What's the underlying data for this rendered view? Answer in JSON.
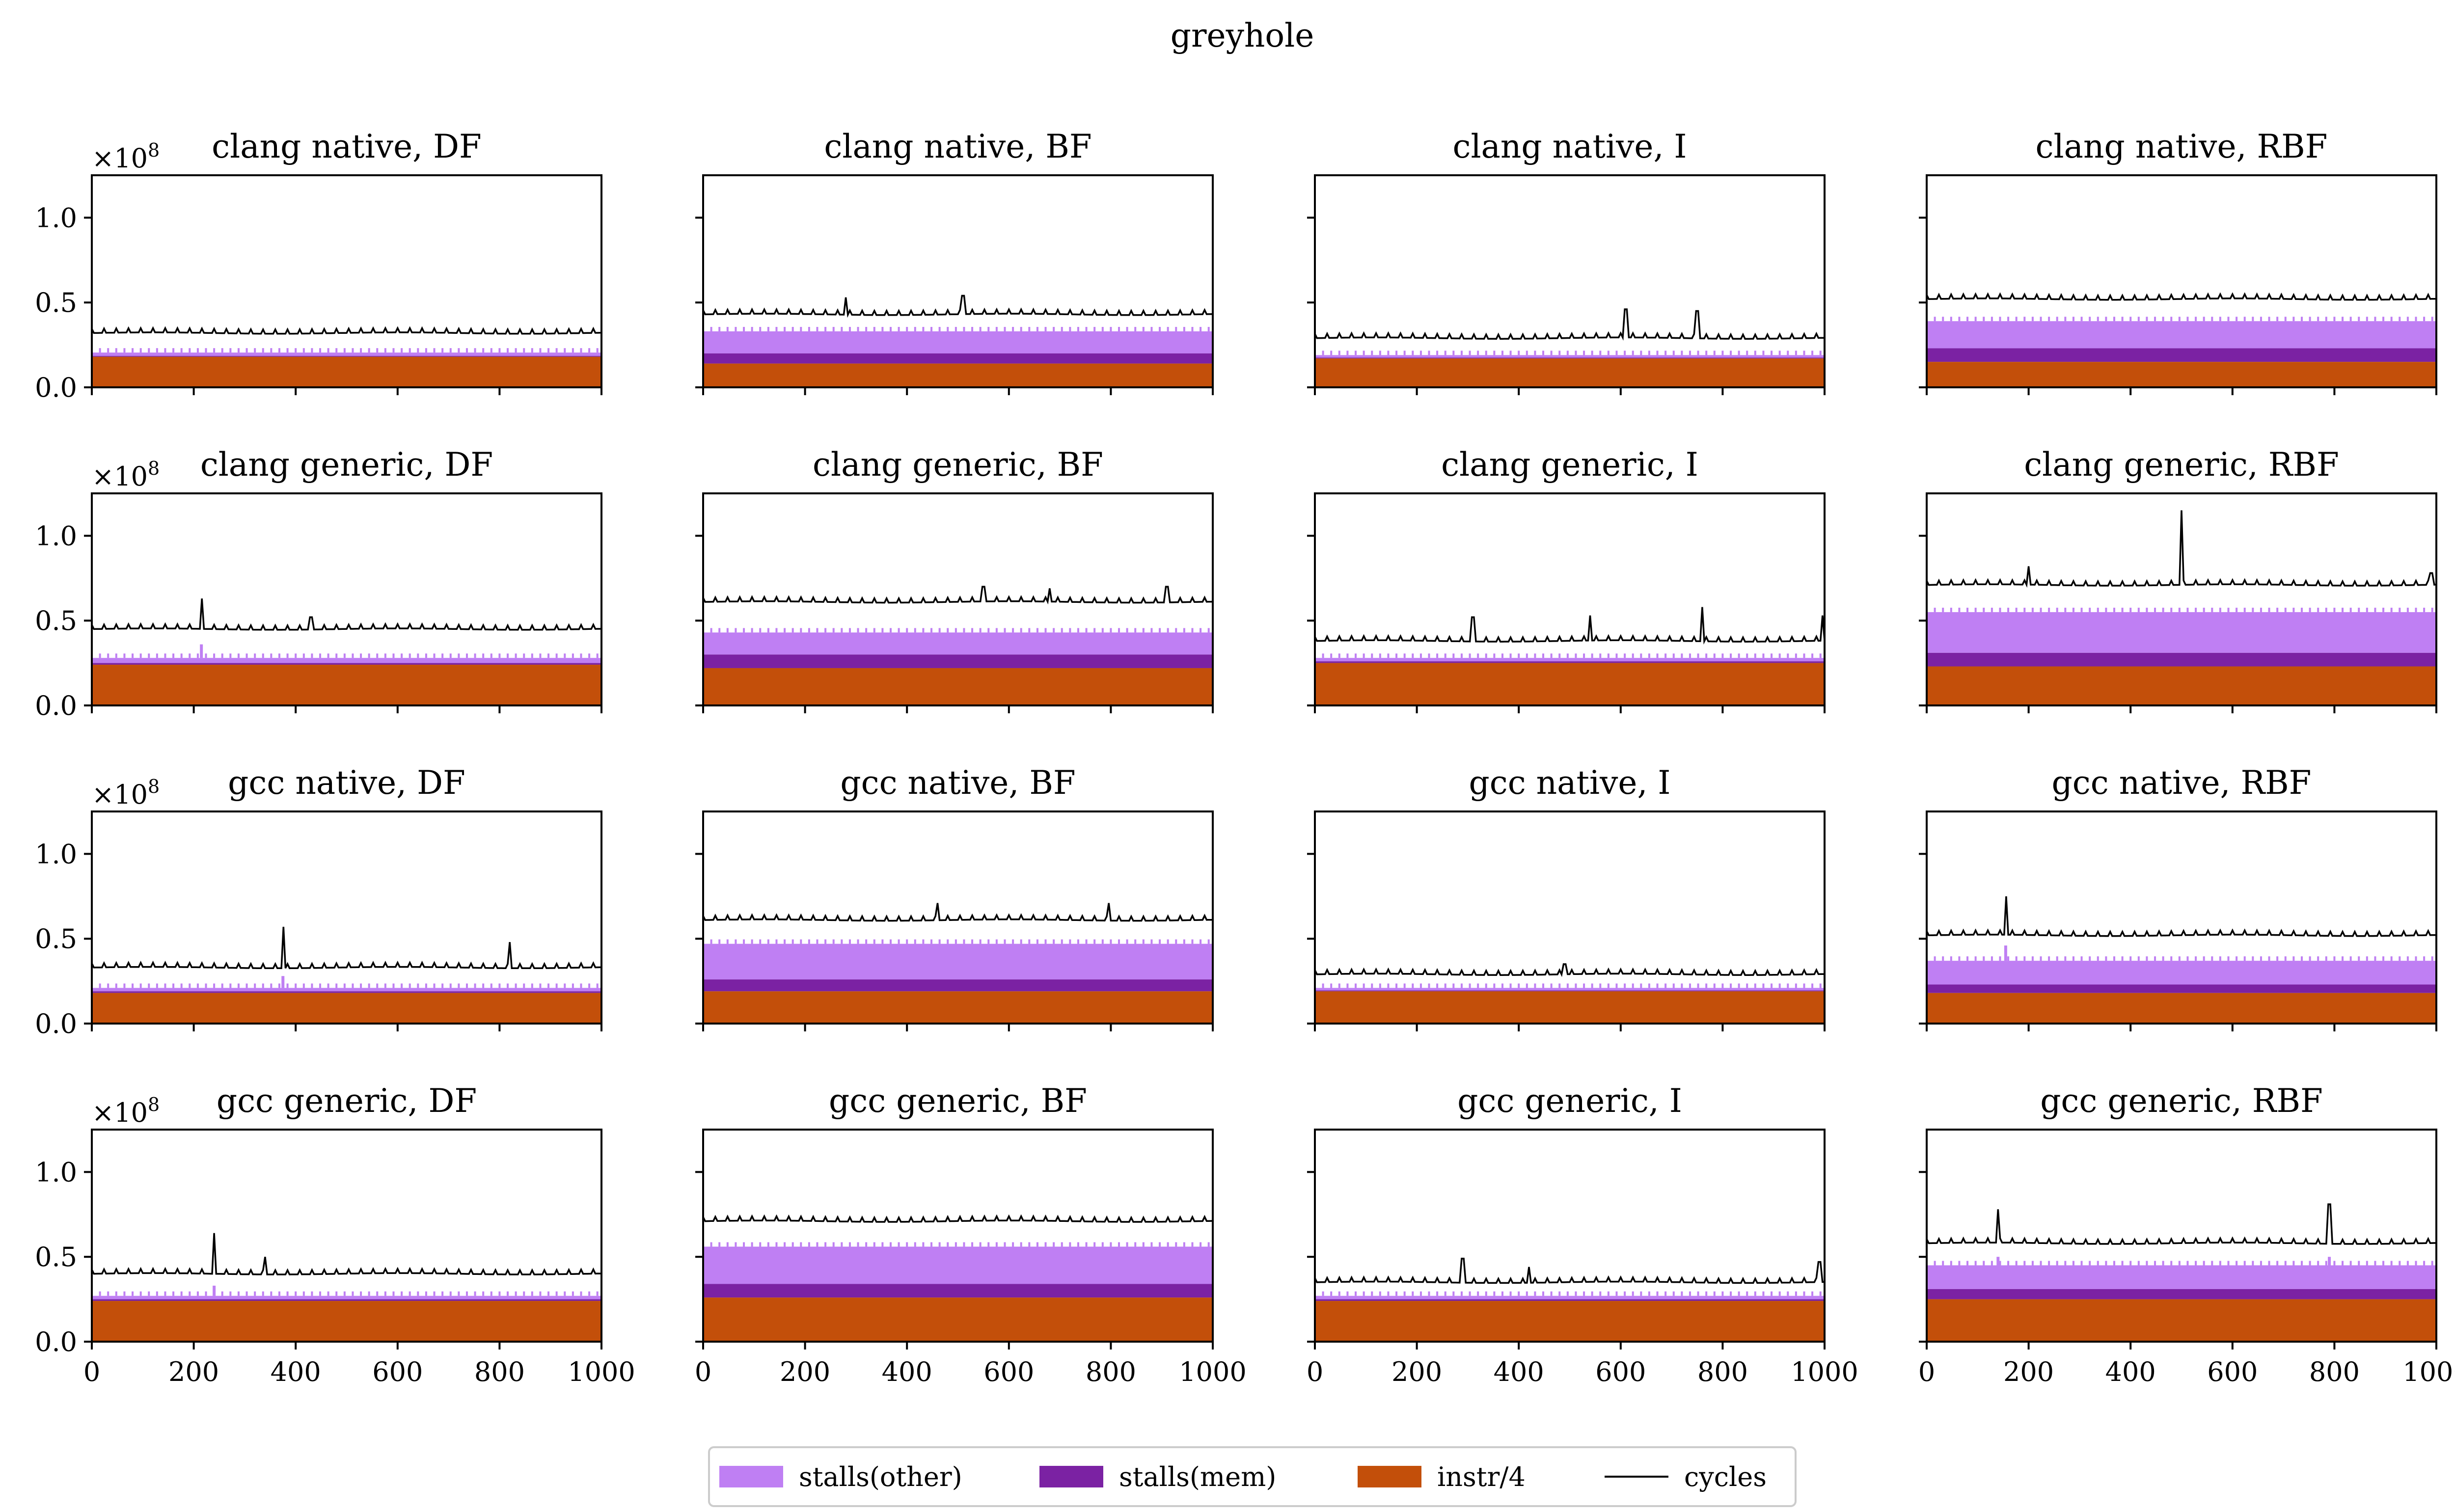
{
  "figure": {
    "title": "greyhole",
    "x_ticks": [
      0,
      200,
      400,
      600,
      800,
      1000
    ],
    "y_ticks": [
      "0.0",
      "0.5",
      "1.0"
    ],
    "y_scale_label": "×10",
    "y_scale_exponent": "8",
    "colors": {
      "stalls_other": "#bf7ff3",
      "stalls_mem": "#7b22a3",
      "instr": "#c34f0a",
      "cycles": "#000000"
    }
  },
  "legend": {
    "items": [
      {
        "label": "stalls(other)",
        "kind": "patch",
        "color": "#bf7ff3"
      },
      {
        "label": "stalls(mem)",
        "kind": "patch",
        "color": "#7b22a3"
      },
      {
        "label": "instr/4",
        "kind": "patch",
        "color": "#c34f0a"
      },
      {
        "label": "cycles",
        "kind": "line",
        "color": "#000000"
      }
    ]
  },
  "chart_data": [
    {
      "type": "area",
      "title": "clang native, DF",
      "xlim": [
        0,
        1000
      ],
      "ylim": [
        0,
        1.25
      ],
      "y_multiplier": "1e8",
      "instr": 0.18,
      "stalls_mem": 0.005,
      "stalls_other": 0.02,
      "cycles": 0.32,
      "cycles_spikes": [],
      "area_spikes": []
    },
    {
      "type": "area",
      "title": "clang native, BF",
      "xlim": [
        0,
        1000
      ],
      "ylim": [
        0,
        1.25
      ],
      "y_multiplier": "1e8",
      "instr": 0.14,
      "stalls_mem": 0.06,
      "stalls_other": 0.13,
      "cycles": 0.43,
      "cycles_spikes": [
        [
          280,
          0.53
        ],
        [
          510,
          0.54
        ]
      ],
      "area_spikes": []
    },
    {
      "type": "area",
      "title": "clang native, I",
      "xlim": [
        0,
        1000
      ],
      "ylim": [
        0,
        1.25
      ],
      "y_multiplier": "1e8",
      "instr": 0.17,
      "stalls_mem": 0.005,
      "stalls_other": 0.015,
      "cycles": 0.29,
      "cycles_spikes": [
        [
          610,
          0.46
        ],
        [
          750,
          0.45
        ]
      ],
      "area_spikes": []
    },
    {
      "type": "area",
      "title": "clang native, RBF",
      "xlim": [
        0,
        1000
      ],
      "ylim": [
        0,
        1.25
      ],
      "y_multiplier": "1e8",
      "instr": 0.15,
      "stalls_mem": 0.08,
      "stalls_other": 0.16,
      "cycles": 0.52,
      "cycles_spikes": [],
      "area_spikes": []
    },
    {
      "type": "area",
      "title": "clang generic, DF",
      "xlim": [
        0,
        1000
      ],
      "ylim": [
        0,
        1.25
      ],
      "y_multiplier": "1e8",
      "instr": 0.24,
      "stalls_mem": 0.01,
      "stalls_other": 0.03,
      "cycles": 0.45,
      "cycles_spikes": [
        [
          215,
          0.63
        ],
        [
          430,
          0.52
        ]
      ],
      "area_spikes": [
        [
          215,
          0.36
        ]
      ]
    },
    {
      "type": "area",
      "title": "clang generic, BF",
      "xlim": [
        0,
        1000
      ],
      "ylim": [
        0,
        1.25
      ],
      "y_multiplier": "1e8",
      "instr": 0.22,
      "stalls_mem": 0.08,
      "stalls_other": 0.13,
      "cycles": 0.61,
      "cycles_spikes": [
        [
          550,
          0.7
        ],
        [
          680,
          0.69
        ],
        [
          910,
          0.7
        ]
      ],
      "area_spikes": []
    },
    {
      "type": "area",
      "title": "clang generic, I",
      "xlim": [
        0,
        1000
      ],
      "ylim": [
        0,
        1.25
      ],
      "y_multiplier": "1e8",
      "instr": 0.25,
      "stalls_mem": 0.01,
      "stalls_other": 0.02,
      "cycles": 0.38,
      "cycles_spikes": [
        [
          310,
          0.52
        ],
        [
          540,
          0.53
        ],
        [
          760,
          0.58
        ],
        [
          995,
          0.53
        ]
      ],
      "area_spikes": []
    },
    {
      "type": "area",
      "title": "clang generic, RBF",
      "xlim": [
        0,
        1000
      ],
      "ylim": [
        0,
        1.25
      ],
      "y_multiplier": "1e8",
      "instr": 0.23,
      "stalls_mem": 0.08,
      "stalls_other": 0.24,
      "cycles": 0.71,
      "cycles_spikes": [
        [
          200,
          0.82
        ],
        [
          500,
          1.15
        ],
        [
          990,
          0.78
        ]
      ],
      "area_spikes": [
        [
          500,
          0.45
        ]
      ]
    },
    {
      "type": "area",
      "title": "gcc native, DF",
      "xlim": [
        0,
        1000
      ],
      "ylim": [
        0,
        1.25
      ],
      "y_multiplier": "1e8",
      "instr": 0.18,
      "stalls_mem": 0.01,
      "stalls_other": 0.02,
      "cycles": 0.33,
      "cycles_spikes": [
        [
          375,
          0.57
        ],
        [
          820,
          0.48
        ]
      ],
      "area_spikes": [
        [
          375,
          0.28
        ]
      ]
    },
    {
      "type": "area",
      "title": "gcc native, BF",
      "xlim": [
        0,
        1000
      ],
      "ylim": [
        0,
        1.25
      ],
      "y_multiplier": "1e8",
      "instr": 0.19,
      "stalls_mem": 0.07,
      "stalls_other": 0.21,
      "cycles": 0.61,
      "cycles_spikes": [
        [
          460,
          0.71
        ],
        [
          795,
          0.71
        ]
      ],
      "area_spikes": []
    },
    {
      "type": "area",
      "title": "gcc native, I",
      "xlim": [
        0,
        1000
      ],
      "ylim": [
        0,
        1.25
      ],
      "y_multiplier": "1e8",
      "instr": 0.19,
      "stalls_mem": 0.005,
      "stalls_other": 0.015,
      "cycles": 0.29,
      "cycles_spikes": [
        [
          490,
          0.35
        ]
      ],
      "area_spikes": []
    },
    {
      "type": "area",
      "title": "gcc native, RBF",
      "xlim": [
        0,
        1000
      ],
      "ylim": [
        0,
        1.25
      ],
      "y_multiplier": "1e8",
      "instr": 0.18,
      "stalls_mem": 0.05,
      "stalls_other": 0.14,
      "cycles": 0.52,
      "cycles_spikes": [
        [
          155,
          0.75
        ]
      ],
      "area_spikes": [
        [
          155,
          0.46
        ]
      ]
    },
    {
      "type": "area",
      "title": "gcc generic, DF",
      "xlim": [
        0,
        1000
      ],
      "ylim": [
        0,
        1.25
      ],
      "y_multiplier": "1e8",
      "instr": 0.24,
      "stalls_mem": 0.01,
      "stalls_other": 0.02,
      "cycles": 0.4,
      "cycles_spikes": [
        [
          240,
          0.64
        ],
        [
          340,
          0.5
        ]
      ],
      "area_spikes": [
        [
          240,
          0.33
        ]
      ]
    },
    {
      "type": "area",
      "title": "gcc generic, BF",
      "xlim": [
        0,
        1000
      ],
      "ylim": [
        0,
        1.25
      ],
      "y_multiplier": "1e8",
      "instr": 0.26,
      "stalls_mem": 0.08,
      "stalls_other": 0.22,
      "cycles": 0.71,
      "cycles_spikes": [],
      "area_spikes": []
    },
    {
      "type": "area",
      "title": "gcc generic, I",
      "xlim": [
        0,
        1000
      ],
      "ylim": [
        0,
        1.25
      ],
      "y_multiplier": "1e8",
      "instr": 0.24,
      "stalls_mem": 0.01,
      "stalls_other": 0.02,
      "cycles": 0.35,
      "cycles_spikes": [
        [
          290,
          0.49
        ],
        [
          420,
          0.44
        ],
        [
          990,
          0.47
        ]
      ],
      "area_spikes": []
    },
    {
      "type": "area",
      "title": "gcc generic, RBF",
      "xlim": [
        0,
        1000
      ],
      "ylim": [
        0,
        1.25
      ],
      "y_multiplier": "1e8",
      "instr": 0.25,
      "stalls_mem": 0.06,
      "stalls_other": 0.14,
      "cycles": 0.58,
      "cycles_spikes": [
        [
          140,
          0.78
        ],
        [
          790,
          0.81
        ]
      ],
      "area_spikes": [
        [
          140,
          0.5
        ],
        [
          790,
          0.5
        ]
      ]
    }
  ]
}
